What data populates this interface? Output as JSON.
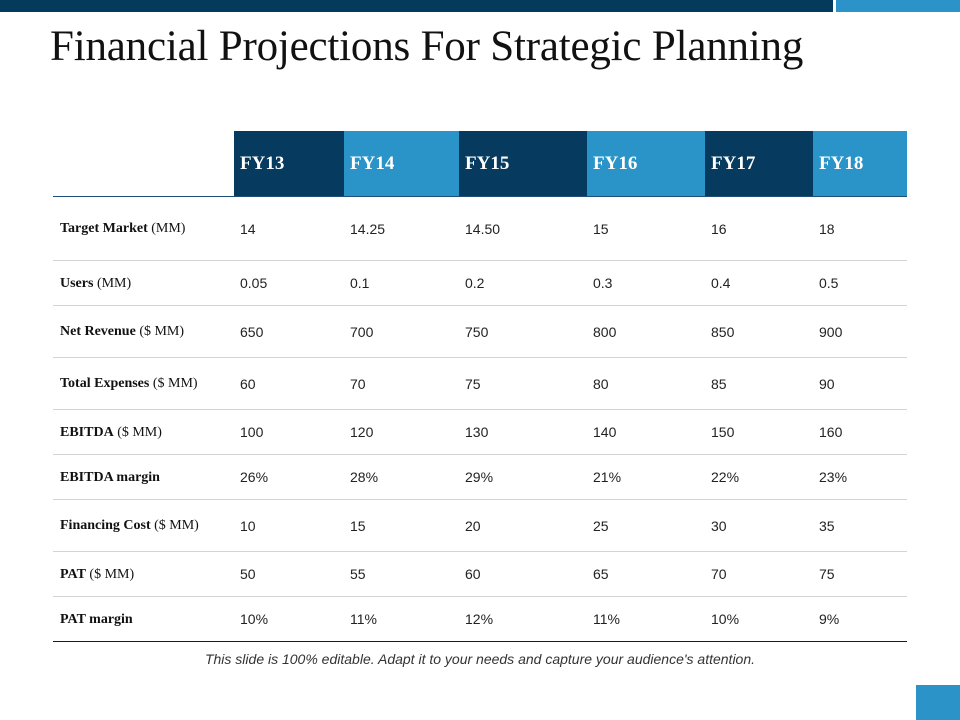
{
  "slide": {
    "title": "Financial Projections For Strategic Planning",
    "footnote": "This slide is 100% editable. Adapt it to your needs and capture your audience's attention."
  },
  "colors": {
    "dark_blue": "#063a5e",
    "light_blue": "#2a93c7"
  },
  "table": {
    "columns": [
      "FY13",
      "FY14",
      "FY15",
      "FY16",
      "FY17",
      "FY18"
    ],
    "rows": [
      {
        "label": "Target Market",
        "unit": " (MM)",
        "values": [
          "14",
          "14.25",
          "14.50",
          "15",
          "16",
          "18"
        ]
      },
      {
        "label": "Users",
        "unit": " (MM)",
        "values": [
          "0.05",
          "0.1",
          "0.2",
          "0.3",
          "0.4",
          "0.5"
        ]
      },
      {
        "label": "Net Revenue",
        "unit": " ($ MM)",
        "values": [
          "650",
          "700",
          "750",
          "800",
          "850",
          "900"
        ]
      },
      {
        "label": "Total Expenses",
        "unit": " ($ MM)",
        "values": [
          "60",
          "70",
          "75",
          "80",
          "85",
          "90"
        ]
      },
      {
        "label": "EBITDA",
        "unit": " ($ MM)",
        "values": [
          "100",
          "120",
          "130",
          "140",
          "150",
          "160"
        ]
      },
      {
        "label": "EBITDA margin",
        "unit": "",
        "values": [
          "26%",
          "28%",
          "29%",
          "21%",
          "22%",
          "23%"
        ]
      },
      {
        "label": "Financing Cost",
        "unit": " ($ MM)",
        "values": [
          "10",
          "15",
          "20",
          "25",
          "30",
          "35"
        ]
      },
      {
        "label": "PAT",
        "unit": " ($ MM)",
        "values": [
          "50",
          "55",
          "60",
          "65",
          "70",
          "75"
        ]
      },
      {
        "label": "PAT margin",
        "unit": "",
        "values": [
          "10%",
          "11%",
          "12%",
          "11%",
          "10%",
          "9%"
        ]
      }
    ]
  }
}
